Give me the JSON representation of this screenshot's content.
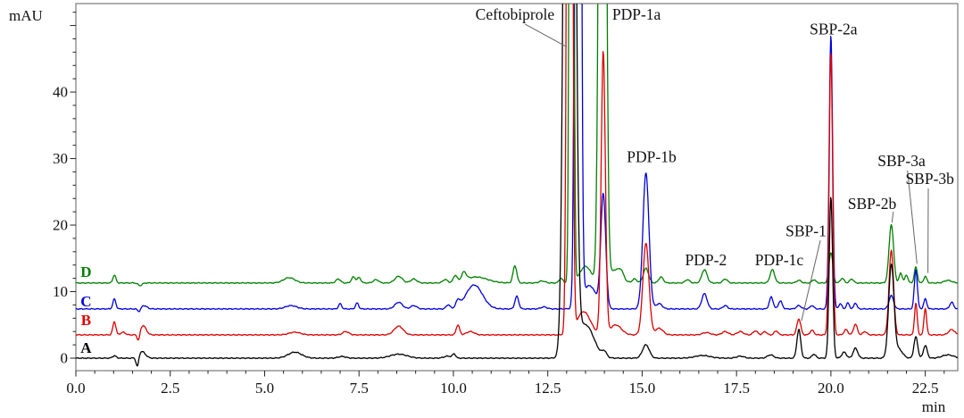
{
  "figure": {
    "y_axis_unit": "mAU",
    "x_axis_unit": "min",
    "background": "#ffffff",
    "frame_color": "#7a7a7a",
    "tick_color": "#222222",
    "label_color": "#111111",
    "leader_color": "#666666"
  },
  "chart_data": {
    "type": "line",
    "title": "",
    "xlabel": "min",
    "ylabel": "mAU",
    "x_range_min": [
      0,
      23.36
    ],
    "y_range_mau": [
      -1.88,
      53.3
    ],
    "x_major_tick_step": 2.5,
    "x_minor_tick_step": 0.5,
    "y_major_tick_step": 10,
    "y_minor_tick_step": 2,
    "grid": false,
    "legend_position": "none",
    "x_tick_labels": [
      {
        "v": 0,
        "label": "0.0"
      },
      {
        "v": 2.5,
        "label": "2.5"
      },
      {
        "v": 5,
        "label": "5.0"
      },
      {
        "v": 7.5,
        "label": "7.5"
      },
      {
        "v": 10,
        "label": "10.0"
      },
      {
        "v": 12.5,
        "label": "12.5"
      },
      {
        "v": 15,
        "label": "15.0"
      },
      {
        "v": 17.5,
        "label": "17.5"
      },
      {
        "v": 20,
        "label": "20.0"
      },
      {
        "v": 22.5,
        "label": "22.5"
      }
    ],
    "y_tick_labels": [
      {
        "v": 0,
        "label": "0"
      },
      {
        "v": 10,
        "label": "10"
      },
      {
        "v": 20,
        "label": "20"
      },
      {
        "v": 30,
        "label": "30"
      },
      {
        "v": 40,
        "label": "40"
      }
    ],
    "draw_order": [
      "D",
      "C",
      "B",
      "A"
    ],
    "series": [
      {
        "id": "A",
        "color": "#000000",
        "baseline_mau": 0,
        "letter_label": {
          "text": "A",
          "t": 0.27,
          "v": 1.6
        },
        "peaks": [
          [
            1.02,
            0.35,
            0.05
          ],
          [
            1.63,
            -1.6,
            0.035
          ],
          [
            1.75,
            1.0,
            0.09
          ],
          [
            5.8,
            0.9,
            0.18
          ],
          [
            7.05,
            0.25,
            0.1
          ],
          [
            8.55,
            0.6,
            0.22
          ],
          [
            9.85,
            0.3,
            0.1
          ],
          [
            10.02,
            0.6,
            0.04
          ],
          [
            13.08,
            300,
            0.1
          ],
          [
            13.5,
            5.0,
            0.22
          ],
          [
            14.0,
            0.8,
            0.06
          ],
          [
            15.1,
            2.0,
            0.09
          ],
          [
            16.6,
            0.4,
            0.2
          ],
          [
            17.6,
            0.3,
            0.1
          ],
          [
            18.4,
            0.5,
            0.08
          ],
          [
            19.15,
            4.3,
            0.05
          ],
          [
            19.55,
            0.6,
            0.05
          ],
          [
            20.0,
            24.3,
            0.045
          ],
          [
            20.35,
            0.9,
            0.06
          ],
          [
            20.65,
            1.5,
            0.06
          ],
          [
            21.6,
            14.0,
            0.07
          ],
          [
            21.8,
            1.3,
            0.1
          ],
          [
            22.25,
            3.2,
            0.05
          ],
          [
            22.5,
            1.9,
            0.05
          ],
          [
            23.1,
            0.5,
            0.15
          ]
        ]
      },
      {
        "id": "B",
        "color": "#dd0000",
        "baseline_mau": 3.5,
        "letter_label": {
          "text": "B",
          "t": 0.27,
          "v": 5.8
        },
        "peaks": [
          [
            1.02,
            2.0,
            0.04
          ],
          [
            1.25,
            0.4,
            0.06
          ],
          [
            1.66,
            -1.2,
            0.035
          ],
          [
            1.78,
            1.4,
            0.08
          ],
          [
            5.8,
            0.4,
            0.15
          ],
          [
            7.15,
            0.5,
            0.08
          ],
          [
            8.55,
            1.3,
            0.12
          ],
          [
            10.12,
            1.5,
            0.045
          ],
          [
            10.45,
            0.5,
            0.1
          ],
          [
            13.08,
            300,
            0.05
          ],
          [
            13.45,
            3.5,
            0.18
          ],
          [
            13.97,
            42.5,
            0.055
          ],
          [
            14.3,
            1.5,
            0.15
          ],
          [
            15.1,
            13.8,
            0.08
          ],
          [
            15.45,
            1.0,
            0.1
          ],
          [
            16.7,
            0.35,
            0.1
          ],
          [
            17.2,
            0.5,
            0.08
          ],
          [
            17.6,
            0.5,
            0.08
          ],
          [
            18.0,
            0.6,
            0.06
          ],
          [
            18.25,
            0.5,
            0.05
          ],
          [
            18.55,
            0.6,
            0.05
          ],
          [
            19.15,
            2.4,
            0.05
          ],
          [
            19.5,
            0.7,
            0.05
          ],
          [
            20.0,
            42.5,
            0.045
          ],
          [
            20.4,
            0.8,
            0.05
          ],
          [
            20.65,
            1.6,
            0.05
          ],
          [
            20.9,
            0.5,
            0.05
          ],
          [
            21.6,
            12.7,
            0.06
          ],
          [
            22.25,
            4.8,
            0.035
          ],
          [
            22.5,
            4.0,
            0.035
          ],
          [
            23.2,
            0.8,
            0.08
          ]
        ]
      },
      {
        "id": "C",
        "color": "#0000dd",
        "baseline_mau": 7.4,
        "letter_label": {
          "text": "C",
          "t": 0.27,
          "v": 8.6
        },
        "peaks": [
          [
            1.02,
            1.5,
            0.04
          ],
          [
            1.68,
            -0.5,
            0.04
          ],
          [
            1.8,
            0.5,
            0.08
          ],
          [
            5.7,
            0.5,
            0.15
          ],
          [
            7.0,
            0.8,
            0.04
          ],
          [
            7.45,
            0.9,
            0.04
          ],
          [
            8.55,
            1.0,
            0.1
          ],
          [
            8.95,
            0.5,
            0.08
          ],
          [
            9.86,
            0.6,
            0.05
          ],
          [
            10.12,
            1.0,
            0.05
          ],
          [
            10.55,
            3.6,
            0.22
          ],
          [
            11.68,
            1.9,
            0.05
          ],
          [
            12.4,
            0.3,
            0.08
          ],
          [
            13.3,
            300,
            0.055
          ],
          [
            13.6,
            3.5,
            0.18
          ],
          [
            13.97,
            17.0,
            0.065
          ],
          [
            15.1,
            20.5,
            0.08
          ],
          [
            15.45,
            0.8,
            0.08
          ],
          [
            16.65,
            2.3,
            0.07
          ],
          [
            17.2,
            0.5,
            0.06
          ],
          [
            18.42,
            1.8,
            0.05
          ],
          [
            18.66,
            1.2,
            0.05
          ],
          [
            19.15,
            0.5,
            0.06
          ],
          [
            19.5,
            0.5,
            0.05
          ],
          [
            20.0,
            41.2,
            0.045
          ],
          [
            20.25,
            0.8,
            0.04
          ],
          [
            20.45,
            0.9,
            0.04
          ],
          [
            20.65,
            0.9,
            0.04
          ],
          [
            21.6,
            2.0,
            0.06
          ],
          [
            22.25,
            5.9,
            0.04
          ],
          [
            22.5,
            1.5,
            0.04
          ],
          [
            23.2,
            1.0,
            0.05
          ]
        ]
      },
      {
        "id": "D",
        "color": "#008000",
        "baseline_mau": 11.3,
        "letter_label": {
          "text": "D",
          "t": 0.27,
          "v": 13.0
        },
        "peaks": [
          [
            1.02,
            1.2,
            0.04
          ],
          [
            1.7,
            -0.4,
            0.05
          ],
          [
            5.65,
            0.8,
            0.15
          ],
          [
            6.95,
            0.6,
            0.06
          ],
          [
            7.35,
            0.9,
            0.05
          ],
          [
            7.5,
            0.8,
            0.05
          ],
          [
            7.95,
            0.5,
            0.07
          ],
          [
            8.55,
            1.0,
            0.1
          ],
          [
            8.95,
            0.6,
            0.08
          ],
          [
            9.78,
            0.5,
            0.06
          ],
          [
            10.05,
            1.0,
            0.05
          ],
          [
            10.28,
            1.2,
            0.06
          ],
          [
            10.6,
            0.9,
            0.3
          ],
          [
            11.63,
            2.6,
            0.05
          ],
          [
            12.35,
            0.3,
            0.08
          ],
          [
            12.85,
            0.7,
            0.05
          ],
          [
            13.13,
            250,
            0.04
          ],
          [
            13.5,
            2.5,
            0.15
          ],
          [
            13.95,
            200,
            0.07
          ],
          [
            14.3,
            2.0,
            0.15
          ],
          [
            14.45,
            0.8,
            0.06
          ],
          [
            14.8,
            0.6,
            0.06
          ],
          [
            15.1,
            2.2,
            0.07
          ],
          [
            15.5,
            0.9,
            0.06
          ],
          [
            16.2,
            0.5,
            0.06
          ],
          [
            16.65,
            2.0,
            0.07
          ],
          [
            17.2,
            0.6,
            0.06
          ],
          [
            18.45,
            2.0,
            0.06
          ],
          [
            19.15,
            0.4,
            0.06
          ],
          [
            19.55,
            0.5,
            0.05
          ],
          [
            20.0,
            4.6,
            0.05
          ],
          [
            20.3,
            0.7,
            0.05
          ],
          [
            20.55,
            0.6,
            0.05
          ],
          [
            21.6,
            8.8,
            0.06
          ],
          [
            21.85,
            1.5,
            0.04
          ],
          [
            22.0,
            1.2,
            0.04
          ],
          [
            22.25,
            2.4,
            0.04
          ],
          [
            22.5,
            1.0,
            0.04
          ],
          [
            23.1,
            0.4,
            0.1
          ]
        ]
      }
    ],
    "peak_annotations": [
      {
        "text": "Ceftobiprole",
        "t": 11.63,
        "v": 51.7,
        "leader": [
          11.9,
          50.2,
          13.0,
          46.8
        ]
      },
      {
        "text": "PDP-1a",
        "t": 14.85,
        "v": 51.7
      },
      {
        "text": "PDP-1b",
        "t": 15.25,
        "v": 30.3
      },
      {
        "text": "PDP-2",
        "t": 16.69,
        "v": 14.8
      },
      {
        "text": "PDP-1c",
        "t": 18.63,
        "v": 14.8
      },
      {
        "text": "SBP-1",
        "t": 19.34,
        "v": 19.1,
        "leader": [
          19.72,
          17.7,
          19.22,
          5.6
        ]
      },
      {
        "text": "SBP-2a",
        "t": 20.07,
        "v": 49.5
      },
      {
        "text": "SBP-2b",
        "t": 21.09,
        "v": 23.2,
        "leader": [
          21.65,
          22.0,
          21.62,
          20.4
        ]
      },
      {
        "text": "SBP-3a",
        "t": 21.87,
        "v": 29.7,
        "leader": [
          22.03,
          28.2,
          22.28,
          14.2
        ]
      },
      {
        "text": "SBP-3b",
        "t": 22.62,
        "v": 27.0,
        "leader": [
          22.58,
          25.5,
          22.57,
          12.8
        ]
      }
    ]
  }
}
